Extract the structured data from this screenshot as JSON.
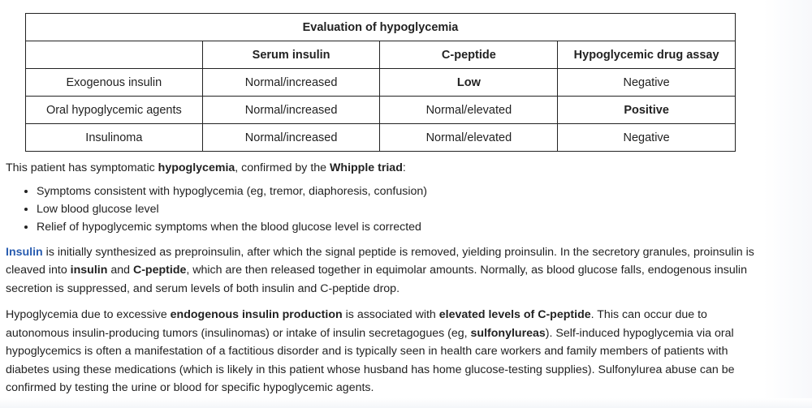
{
  "table": {
    "title": "Evaluation of hypoglycemia",
    "headers": [
      "",
      "Serum insulin",
      "C-peptide",
      "Hypoglycemic drug assay"
    ],
    "rows": [
      {
        "label": "Exogenous insulin",
        "serum_insulin": "Normal/increased",
        "c_peptide": "Low",
        "drug_assay": "Negative"
      },
      {
        "label": "Oral hypoglycemic agents",
        "serum_insulin": "Normal/increased",
        "c_peptide": "Normal/elevated",
        "drug_assay": "Positive"
      },
      {
        "label": "Insulinoma",
        "serum_insulin": "Normal/increased",
        "c_peptide": "Normal/elevated",
        "drug_assay": "Negative"
      }
    ]
  },
  "intro": {
    "text1": "This patient has symptomatic ",
    "bold1": "hypoglycemia",
    "text2": ", confirmed by the ",
    "bold2": "Whipple triad",
    "text3": ":"
  },
  "bullets": [
    "Symptoms consistent with hypoglycemia (eg, tremor, diaphoresis, confusion)",
    "Low blood glucose level",
    "Relief of hypoglycemic symptoms when the blood glucose level is corrected"
  ],
  "para2": {
    "link": "Insulin",
    "t1": " is initially synthesized as preproinsulin, after which the signal peptide is removed, yielding proinsulin.  In the secretory granules, proinsulin is cleaved into ",
    "b1": "insulin",
    "t2": " and ",
    "b2": "C-peptide",
    "t3": ", which are then released together in equimolar amounts.  Normally, as blood glucose falls, endogenous insulin secretion is suppressed, and serum levels of both insulin and C-peptide drop."
  },
  "para3": {
    "t1": "Hypoglycemia due to excessive ",
    "b1": "endogenous insulin production",
    "t2": " is associated with ",
    "b2": "elevated levels of C-peptide",
    "t3": ".  This can occur due to autonomous insulin-producing tumors (insulinomas) or intake of insulin secretagogues (eg, ",
    "b3": "sulfonylureas",
    "t4": ").  Self-induced hypoglycemia via oral hypoglycemics is often a manifestation of a factitious disorder and is typically seen in health care workers and family members of patients with diabetes using these medications (which is likely in this patient whose husband has home glucose-testing supplies).  Sulfonylurea abuse can be confirmed by testing the urine or blood for specific hypoglycemic agents."
  }
}
